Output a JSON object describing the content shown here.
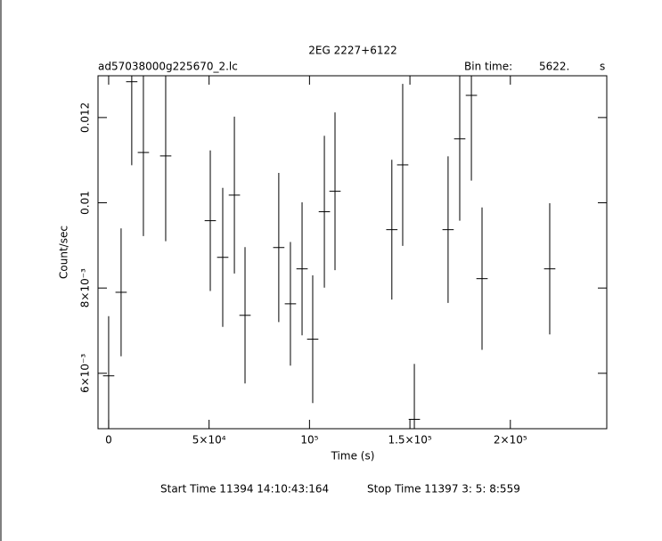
{
  "chart_data": {
    "type": "errorbar",
    "title": "2EG 2227+6122",
    "subtitle": "ad57038000g225670_2.lc",
    "bin_time_label": "Bin time:",
    "bin_time": "5622.",
    "bin_time_unit": "s",
    "xlabel": "Time (s)",
    "ylabel": "Count/sec",
    "start_time": "Start Time 11394 14:10:43:164",
    "stop_time": "Stop Time 11397  3: 5: 8:559",
    "color": "#000000",
    "xlim": [
      -5300,
      248000
    ],
    "ylim": [
      0.0047,
      0.01298
    ],
    "xticks": [
      {
        "value": 0,
        "label": "0"
      },
      {
        "value": 50000,
        "label": "5×10⁴"
      },
      {
        "value": 100000,
        "label": "10⁵"
      },
      {
        "value": 150000,
        "label": "1.5×10⁵"
      },
      {
        "value": 200000,
        "label": "2×10⁵"
      }
    ],
    "yticks": [
      {
        "value": 0.006,
        "label": "6×10⁻³"
      },
      {
        "value": 0.008,
        "label": "8×10⁻³"
      },
      {
        "value": 0.01,
        "label": "0.01"
      },
      {
        "value": 0.012,
        "label": "0.012"
      }
    ],
    "series": [
      {
        "name": null,
        "x": [
          0,
          6200,
          11500,
          17300,
          28400,
          50600,
          56800,
          62600,
          67900,
          84700,
          90500,
          96300,
          101600,
          107400,
          112700,
          141000,
          146400,
          152200,
          169000,
          174800,
          180600,
          185900,
          219600
        ],
        "values": [
          0.00594,
          0.0079,
          0.01284,
          0.01118,
          0.0111,
          0.00958,
          0.00872,
          0.01018,
          0.00736,
          0.00895,
          0.00763,
          0.00845,
          0.0068,
          0.00979,
          0.01027,
          0.00937,
          0.01089,
          0.00492,
          0.00937,
          0.0115,
          0.01252,
          0.00822,
          0.00845
        ],
        "xerr": [
          2811,
          2811,
          2811,
          2811,
          2811,
          2811,
          2811,
          2811,
          2811,
          2811,
          2811,
          2811,
          2811,
          2811,
          2811,
          2811,
          2811,
          2811,
          2811,
          2811,
          2811,
          2811,
          2811
        ],
        "yerr": [
          0.0014,
          0.0015,
          0.00196,
          0.00196,
          0.002,
          0.00165,
          0.00163,
          0.00184,
          0.0016,
          0.00175,
          0.00145,
          0.00156,
          0.0015,
          0.00178,
          0.00185,
          0.00164,
          0.0019,
          0.0013,
          0.00172,
          0.00192,
          0.002,
          0.00167,
          0.00154
        ]
      }
    ]
  }
}
